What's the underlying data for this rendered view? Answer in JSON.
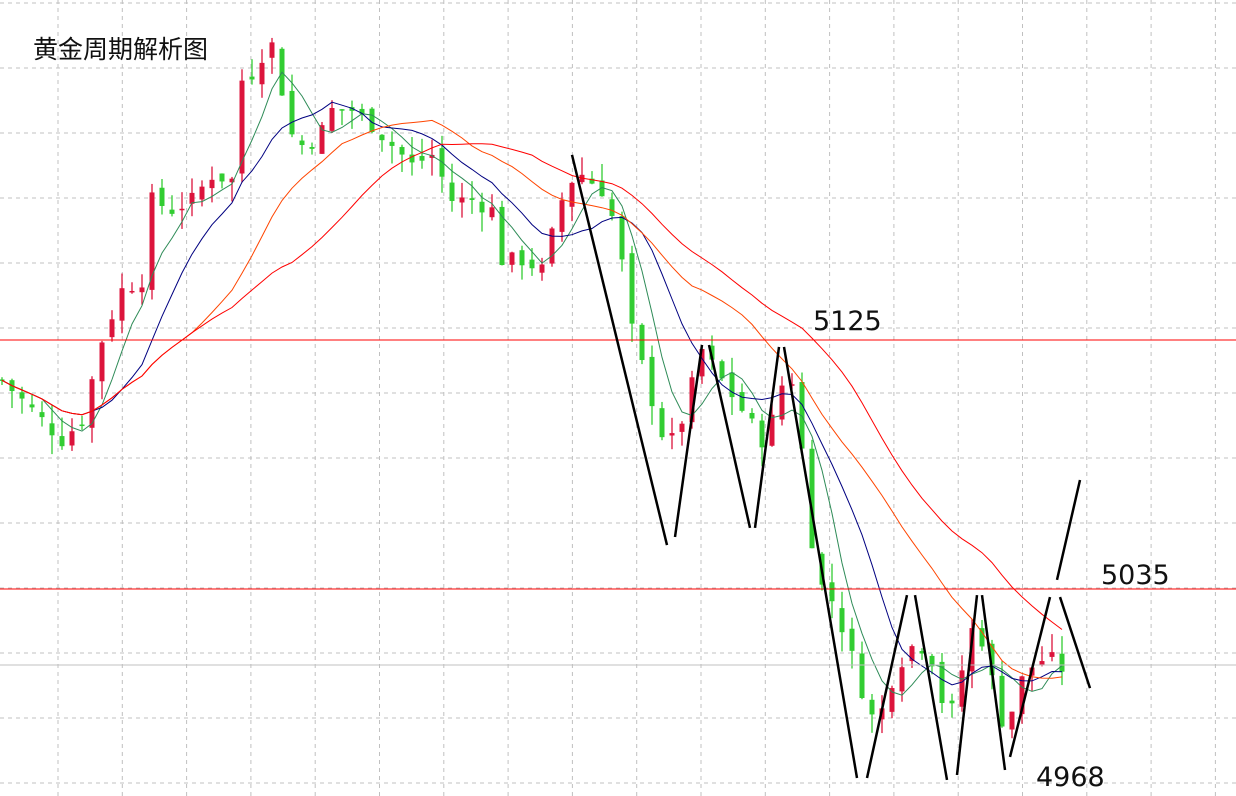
{
  "chart_data": {
    "type": "candlestick",
    "title": "黄金周期解析图",
    "ylim": [
      4958,
      5245
    ],
    "grid": true,
    "colors": {
      "up": "#dc143c",
      "down": "#32cd32",
      "ma5": "#2e8b57",
      "ma10": "#000080",
      "ma20": "#ff4500",
      "ma30": "#ff0000",
      "level": "#ff0000",
      "current": "#c0c0c0",
      "annotation": "#000000"
    },
    "close_path": [
      [
        0,
        5110.5
      ],
      [
        2,
        5103.3
      ],
      [
        4,
        5096.1
      ],
      [
        6,
        5088.9
      ],
      [
        8,
        5096.1
      ],
      [
        10,
        5125
      ],
      [
        12,
        5143.1
      ],
      [
        14,
        5146.7
      ],
      [
        15,
        5175.6
      ],
      [
        17,
        5172
      ],
      [
        19,
        5175.6
      ],
      [
        21,
        5184.6
      ],
      [
        23,
        5182.8
      ],
      [
        24,
        5219
      ],
      [
        25.5,
        5222.6
      ],
      [
        26.5,
        5233.4
      ],
      [
        27.5,
        5229.8
      ],
      [
        28.5,
        5200.9
      ],
      [
        30,
        5195.5
      ],
      [
        31.5,
        5197.3
      ],
      [
        33,
        5208.1
      ],
      [
        35,
        5208.1
      ],
      [
        37,
        5202.7
      ],
      [
        39,
        5195.5
      ],
      [
        41,
        5188.2
      ],
      [
        43,
        5191.9
      ],
      [
        45,
        5175.6
      ],
      [
        47,
        5175.6
      ],
      [
        49,
        5172
      ],
      [
        50,
        5153.9
      ],
      [
        52,
        5153.9
      ],
      [
        54,
        5150.3
      ],
      [
        56,
        5175.6
      ],
      [
        57.5,
        5186.4
      ],
      [
        60,
        5179.2
      ],
      [
        61.5,
        5164.8
      ],
      [
        63,
        5128.6
      ],
      [
        65,
        5103.3
      ],
      [
        66.5,
        5085.2
      ],
      [
        68,
        5096.1
      ],
      [
        70,
        5121.4
      ],
      [
        72,
        5110.5
      ],
      [
        74,
        5099.7
      ],
      [
        76,
        5088.9
      ],
      [
        77.5,
        5099.7
      ],
      [
        78.5,
        5117.8
      ],
      [
        79.5,
        5103.3
      ],
      [
        80.5,
        5067.2
      ],
      [
        81.5,
        5038.3
      ],
      [
        83,
        5031
      ],
      [
        84.5,
        5016.6
      ],
      [
        86,
        4998.5
      ],
      [
        87.5,
        4984.1
      ],
      [
        88.5,
        4998.5
      ],
      [
        90,
        5009.4
      ],
      [
        91.5,
        5016.6
      ],
      [
        93,
        5009.4
      ],
      [
        94.5,
        4987.7
      ],
      [
        95.5,
        4995
      ],
      [
        96.5,
        5016.6
      ],
      [
        97.5,
        5023.8
      ],
      [
        98.5,
        5009.4
      ],
      [
        100,
        4987.7
      ],
      [
        101,
        4991.3
      ],
      [
        102,
        5002.1
      ],
      [
        103.5,
        5009.4
      ],
      [
        105,
        5009.4
      ],
      [
        106.2,
        5005.7
      ]
    ],
    "levels": [
      {
        "label": "5125",
        "price": 5125
      },
      {
        "label": "5035",
        "price": 5035
      }
    ],
    "current_price": 5008,
    "low_label": "4968",
    "annotations": [
      [
        [
          57,
          5191.9
        ],
        [
          66.5,
          5050.9
        ]
      ],
      [
        [
          67.3,
          5053.8
        ],
        [
          70,
          5123.2
        ]
      ],
      [
        [
          70.7,
          5123.2
        ],
        [
          74.8,
          5057.1
        ]
      ],
      [
        [
          75.3,
          5057.1
        ],
        [
          77.7,
          5122.5
        ]
      ],
      [
        [
          78.2,
          5122.5
        ],
        [
          85.5,
          4966.7
        ]
      ],
      [
        [
          86.5,
          4966.7
        ],
        [
          90.5,
          5032.8
        ]
      ],
      [
        [
          91.3,
          5032.8
        ],
        [
          94.5,
          4966
        ]
      ],
      [
        [
          95.5,
          4967.8
        ],
        [
          97.5,
          5032.8
        ]
      ],
      [
        [
          98,
          5032.8
        ],
        [
          100.3,
          4969.6
        ]
      ],
      [
        [
          100.8,
          4974.3
        ],
        [
          104.8,
          5032.1
        ]
      ],
      [
        [
          105.5,
          5038.3
        ],
        [
          107.8,
          5074.4
        ]
      ],
      [
        [
          105.8,
          5032.1
        ],
        [
          108.8,
          4999.2
        ]
      ]
    ]
  }
}
